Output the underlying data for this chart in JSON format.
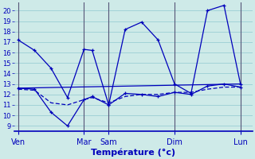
{
  "xlabel": "Température (°c)",
  "background_color": "#ceeae8",
  "grid_color": "#8fc8d0",
  "line_color": "#0000bb",
  "ylim": [
    8.5,
    20.8
  ],
  "yticks": [
    9,
    10,
    11,
    12,
    13,
    14,
    15,
    16,
    17,
    18,
    19,
    20
  ],
  "day_labels": [
    "Ven",
    "Mar",
    "Sam",
    "Dim",
    "Lun"
  ],
  "day_positions": [
    0,
    8,
    11,
    19,
    27
  ],
  "xlim": [
    -0.5,
    28.5
  ],
  "series": [
    {
      "name": "main_zigzag",
      "style": "solid_marker",
      "x": [
        0,
        2,
        4,
        6,
        8,
        9,
        11,
        13,
        15,
        17,
        19,
        21,
        23,
        25,
        27
      ],
      "y": [
        17.2,
        16.2,
        14.5,
        11.7,
        16.3,
        16.2,
        11.0,
        18.2,
        18.9,
        17.2,
        13.0,
        12.1,
        20.0,
        20.5,
        13.0
      ]
    },
    {
      "name": "low_zigzag",
      "style": "solid_marker",
      "x": [
        0,
        2,
        4,
        6,
        8,
        9,
        11,
        13,
        15,
        17,
        19,
        21,
        23,
        25,
        27
      ],
      "y": [
        12.6,
        12.5,
        10.3,
        9.0,
        11.5,
        11.8,
        11.0,
        12.1,
        12.0,
        11.8,
        12.2,
        12.0,
        12.8,
        13.0,
        12.7
      ]
    },
    {
      "name": "flat_upper",
      "style": "solid_plain",
      "x": [
        0,
        27
      ],
      "y": [
        12.6,
        13.0
      ]
    },
    {
      "name": "flat_lower",
      "style": "dashed_plain",
      "x": [
        0,
        2,
        4,
        6,
        8,
        9,
        11,
        13,
        15,
        17,
        19,
        21,
        23,
        25,
        27
      ],
      "y": [
        12.5,
        12.4,
        11.2,
        11.0,
        11.5,
        11.7,
        11.2,
        11.8,
        12.0,
        12.0,
        12.2,
        12.2,
        12.5,
        12.7,
        12.7
      ]
    }
  ]
}
